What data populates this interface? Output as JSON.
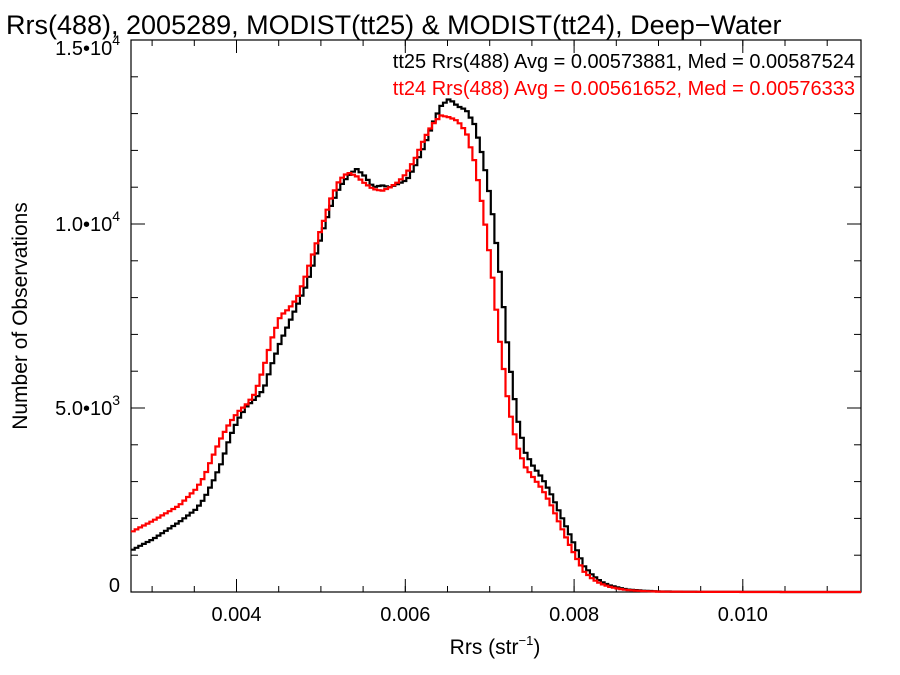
{
  "chart_data": {
    "type": "line",
    "title": "Rrs(488), 2005289, MODIST(tt25) & MODIST(tt24), Deep−Water",
    "xlabel": "Rrs (str",
    "xlabel_sup": "−1",
    "xlabel_end": ")",
    "ylabel": "Number of Observations",
    "xlim": [
      0.00275,
      0.0114
    ],
    "ylim": [
      0,
      15000
    ],
    "x_ticks": [
      {
        "value": 0.004,
        "label": "0.004"
      },
      {
        "value": 0.006,
        "label": "0.006"
      },
      {
        "value": 0.008,
        "label": "0.008"
      },
      {
        "value": 0.01,
        "label": "0.010"
      }
    ],
    "y_ticks": [
      {
        "value": 0,
        "mantissa": "0",
        "exp": ""
      },
      {
        "value": 5000,
        "mantissa": "5.0•10",
        "exp": "3"
      },
      {
        "value": 10000,
        "mantissa": "1.0•10",
        "exp": "4"
      },
      {
        "value": 15000,
        "mantissa": "1.5•10",
        "exp": "4"
      }
    ],
    "x_minor_step": 0.0005,
    "y_minor_step": 1000,
    "legend_position": "top-right",
    "series": [
      {
        "name": "tt25",
        "color": "#000000",
        "legend": "tt25 Rrs(488) Avg = 0.00573881, Med = 0.00587524",
        "points": [
          [
            0.00275,
            1150
          ],
          [
            0.003,
            1450
          ],
          [
            0.0033,
            1900
          ],
          [
            0.0035,
            2250
          ],
          [
            0.0036,
            2550
          ],
          [
            0.0037,
            3000
          ],
          [
            0.0038,
            3500
          ],
          [
            0.0039,
            4200
          ],
          [
            0.004,
            4700
          ],
          [
            0.0041,
            5050
          ],
          [
            0.0042,
            5250
          ],
          [
            0.0043,
            5500
          ],
          [
            0.0044,
            6200
          ],
          [
            0.0045,
            6800
          ],
          [
            0.0046,
            7300
          ],
          [
            0.0047,
            7800
          ],
          [
            0.0048,
            8300
          ],
          [
            0.0049,
            9000
          ],
          [
            0.005,
            9800
          ],
          [
            0.0051,
            10500
          ],
          [
            0.0052,
            11000
          ],
          [
            0.0053,
            11300
          ],
          [
            0.0054,
            11500
          ],
          [
            0.0055,
            11300
          ],
          [
            0.0056,
            11000
          ],
          [
            0.0057,
            11050
          ],
          [
            0.0058,
            11000
          ],
          [
            0.0059,
            11100
          ],
          [
            0.006,
            11200
          ],
          [
            0.0061,
            11600
          ],
          [
            0.0062,
            12100
          ],
          [
            0.0063,
            12700
          ],
          [
            0.0064,
            13200
          ],
          [
            0.0065,
            13400
          ],
          [
            0.0066,
            13200
          ],
          [
            0.0067,
            13100
          ],
          [
            0.0068,
            12700
          ],
          [
            0.0069,
            11800
          ],
          [
            0.007,
            10500
          ],
          [
            0.0071,
            8700
          ],
          [
            0.0072,
            6500
          ],
          [
            0.0073,
            4800
          ],
          [
            0.0074,
            3800
          ],
          [
            0.0075,
            3400
          ],
          [
            0.0076,
            3100
          ],
          [
            0.0077,
            2700
          ],
          [
            0.0078,
            2200
          ],
          [
            0.0079,
            1700
          ],
          [
            0.008,
            1200
          ],
          [
            0.0081,
            700
          ],
          [
            0.0082,
            450
          ],
          [
            0.0083,
            280
          ],
          [
            0.0084,
            180
          ],
          [
            0.0085,
            120
          ],
          [
            0.0086,
            70
          ],
          [
            0.0088,
            35
          ],
          [
            0.009,
            15
          ],
          [
            0.0095,
            5
          ],
          [
            0.01,
            2
          ],
          [
            0.0114,
            0
          ]
        ]
      },
      {
        "name": "tt24",
        "color": "#ff0000",
        "legend": "tt24 Rrs(488) Avg = 0.00561652, Med = 0.00576333",
        "points": [
          [
            0.00275,
            1650
          ],
          [
            0.003,
            1950
          ],
          [
            0.0033,
            2350
          ],
          [
            0.0035,
            2800
          ],
          [
            0.0036,
            3150
          ],
          [
            0.0037,
            3700
          ],
          [
            0.0038,
            4200
          ],
          [
            0.0039,
            4600
          ],
          [
            0.004,
            4900
          ],
          [
            0.0041,
            5100
          ],
          [
            0.0042,
            5400
          ],
          [
            0.0043,
            6100
          ],
          [
            0.0044,
            6900
          ],
          [
            0.0045,
            7500
          ],
          [
            0.0046,
            7700
          ],
          [
            0.0047,
            8000
          ],
          [
            0.0048,
            8600
          ],
          [
            0.0049,
            9300
          ],
          [
            0.005,
            10000
          ],
          [
            0.0051,
            10700
          ],
          [
            0.0052,
            11200
          ],
          [
            0.0053,
            11400
          ],
          [
            0.0054,
            11300
          ],
          [
            0.0055,
            11100
          ],
          [
            0.0056,
            10950
          ],
          [
            0.0057,
            10900
          ],
          [
            0.0058,
            11000
          ],
          [
            0.0059,
            11150
          ],
          [
            0.006,
            11400
          ],
          [
            0.0061,
            11800
          ],
          [
            0.0062,
            12300
          ],
          [
            0.0063,
            12700
          ],
          [
            0.0064,
            12950
          ],
          [
            0.0065,
            12900
          ],
          [
            0.0066,
            12800
          ],
          [
            0.0067,
            12500
          ],
          [
            0.0068,
            11700
          ],
          [
            0.0069,
            10400
          ],
          [
            0.007,
            8800
          ],
          [
            0.0071,
            6800
          ],
          [
            0.0072,
            5100
          ],
          [
            0.0073,
            4000
          ],
          [
            0.0074,
            3400
          ],
          [
            0.0075,
            3100
          ],
          [
            0.0076,
            2800
          ],
          [
            0.0077,
            2400
          ],
          [
            0.0078,
            1900
          ],
          [
            0.0079,
            1400
          ],
          [
            0.008,
            950
          ],
          [
            0.0081,
            550
          ],
          [
            0.0082,
            350
          ],
          [
            0.0083,
            220
          ],
          [
            0.0084,
            140
          ],
          [
            0.0085,
            90
          ],
          [
            0.0086,
            55
          ],
          [
            0.0088,
            25
          ],
          [
            0.009,
            10
          ],
          [
            0.0095,
            4
          ],
          [
            0.01,
            1
          ],
          [
            0.0114,
            0
          ]
        ]
      }
    ]
  }
}
